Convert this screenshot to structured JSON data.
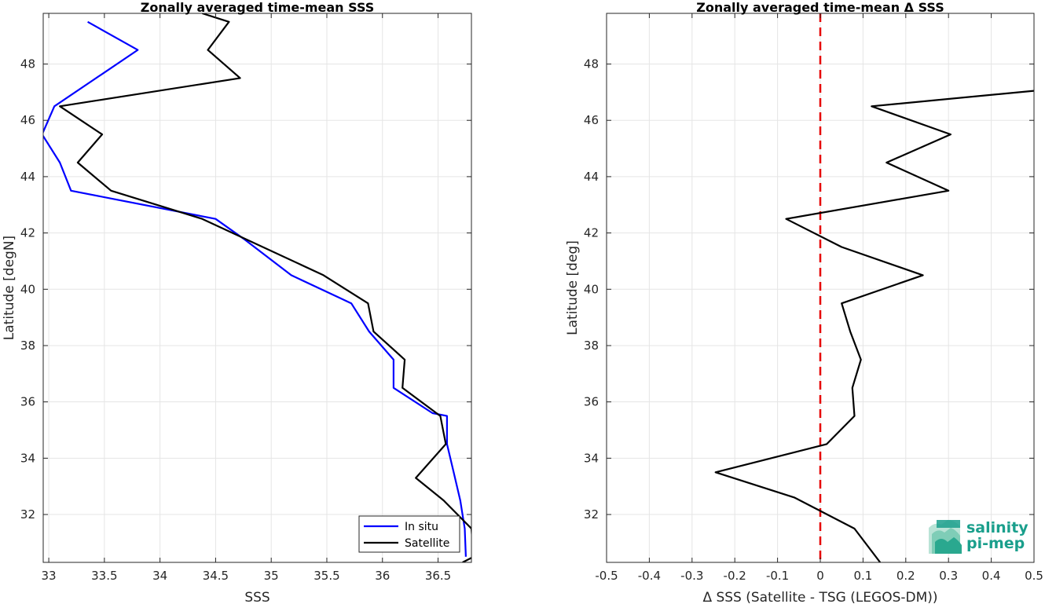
{
  "chart_data": [
    {
      "type": "line",
      "title": "Zonally averaged time-mean SSS",
      "xlabel": "SSS",
      "ylabel": "Latitude [degN]",
      "xlim": [
        32.95,
        36.8
      ],
      "ylim": [
        30.3,
        49.8
      ],
      "xticks": [
        33,
        33.5,
        34,
        34.5,
        35,
        35.5,
        36,
        36.5
      ],
      "xtick_labels": [
        "33",
        "33.5",
        "34",
        "34.5",
        "35",
        "35.5",
        "36",
        "36.5"
      ],
      "yticks": [
        32,
        34,
        36,
        38,
        40,
        42,
        44,
        46,
        48
      ],
      "ytick_labels": [
        "32",
        "34",
        "36",
        "38",
        "40",
        "42",
        "44",
        "46",
        "48"
      ],
      "grid": true,
      "legend_position": "bottom-right",
      "series": [
        {
          "name": "In situ",
          "color": "#0000ff",
          "x": [
            36.75,
            36.74,
            36.7,
            36.64,
            36.58,
            36.58,
            36.45,
            36.1,
            36.1,
            35.88,
            35.72,
            35.18,
            34.75,
            34.5,
            33.2,
            33.1,
            32.94,
            33.05,
            33.5,
            33.8,
            33.35
          ],
          "y": [
            30.5,
            31.5,
            32.5,
            33.5,
            34.5,
            35.5,
            35.6,
            36.5,
            37.5,
            38.5,
            39.5,
            40.5,
            41.8,
            42.5,
            43.5,
            44.5,
            45.5,
            46.5,
            47.7,
            48.5,
            49.5
          ]
        },
        {
          "name": "Satellite",
          "color": "#000000",
          "x": [
            36.72,
            36.82,
            36.8,
            36.55,
            36.3,
            36.57,
            36.52,
            36.18,
            36.2,
            35.92,
            35.87,
            35.47,
            34.38,
            33.56,
            33.26,
            33.48,
            33.1,
            34.72,
            34.43,
            34.62,
            34.38
          ],
          "y": [
            30.3,
            30.5,
            31.5,
            32.5,
            33.3,
            34.5,
            35.5,
            36.5,
            37.5,
            38.5,
            39.5,
            40.5,
            42.5,
            43.5,
            44.5,
            45.5,
            46.5,
            47.5,
            48.5,
            49.5,
            49.8
          ]
        }
      ]
    },
    {
      "type": "line",
      "title": "Zonally averaged time-mean Δ SSS",
      "xlabel": "Δ SSS (Satellite - TSG (LEGOS-DM))",
      "ylabel": "Latitude [deg]",
      "xlim": [
        -0.5,
        0.5
      ],
      "ylim": [
        30.3,
        49.8
      ],
      "xticks": [
        -0.5,
        -0.4,
        -0.3,
        -0.2,
        -0.1,
        0,
        0.1,
        0.2,
        0.3,
        0.4,
        0.5
      ],
      "xtick_labels": [
        "-0.5",
        "-0.4",
        "-0.3",
        "-0.2",
        "-0.1",
        "0",
        "0.1",
        "0.2",
        "0.3",
        "0.4",
        "0.5"
      ],
      "yticks": [
        32,
        34,
        36,
        38,
        40,
        42,
        44,
        46,
        48
      ],
      "ytick_labels": [
        "32",
        "34",
        "36",
        "38",
        "40",
        "42",
        "44",
        "46",
        "48"
      ],
      "grid": true,
      "zero_line": {
        "x": 0,
        "color": "#e60000",
        "style": "dashed"
      },
      "series": [
        {
          "color": "#000000",
          "x": [
            0.14,
            0.08,
            -0.06,
            -0.245,
            0.015,
            0.08,
            0.075,
            0.095,
            0.07,
            0.05,
            0.24,
            0.05,
            -0.08,
            0.3,
            0.155,
            0.305,
            0.12,
            0.5
          ],
          "y": [
            30.3,
            31.5,
            32.6,
            33.5,
            34.5,
            35.5,
            36.5,
            37.5,
            38.5,
            39.5,
            40.5,
            41.5,
            42.5,
            43.5,
            44.5,
            45.5,
            46.5,
            47.05
          ]
        }
      ]
    }
  ],
  "logo": {
    "line1": "salinity",
    "line2": "pi-mep"
  }
}
